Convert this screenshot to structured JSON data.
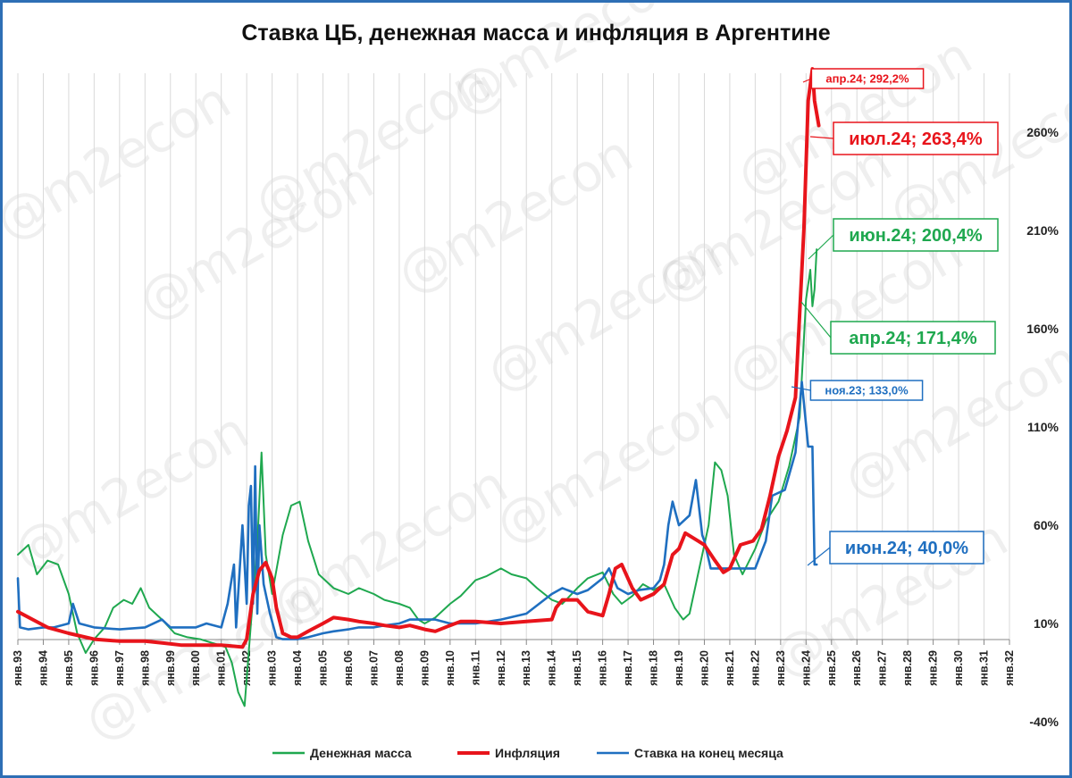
{
  "watermark": "@m2econ",
  "chart_data": {
    "type": "line",
    "title": "Ставка ЦБ, денежная масса и инфляция в Аргентине",
    "x_start": "1993-01",
    "x_end": "2032-01",
    "xticks": [
      "янв.93",
      "янв.94",
      "янв.95",
      "янв.96",
      "янв.97",
      "янв.98",
      "янв.99",
      "янв.00",
      "янв.01",
      "янв.02",
      "янв.03",
      "янв.04",
      "янв.05",
      "янв.06",
      "янв.07",
      "янв.08",
      "янв.09",
      "янв.10",
      "янв.11",
      "янв.12",
      "янв.13",
      "янв.14",
      "янв.15",
      "янв.16",
      "янв.17",
      "янв.18",
      "янв.19",
      "янв.20",
      "янв.21",
      "янв.22",
      "янв.23",
      "янв.24",
      "янв.25",
      "янв.26",
      "янв.27",
      "янв.28",
      "янв.29",
      "янв.30",
      "янв.31",
      "янв.32"
    ],
    "ylim": [
      -40,
      290
    ],
    "yticks": [
      -40,
      10,
      60,
      110,
      160,
      210,
      260
    ],
    "ytick_labels": [
      "-40%",
      "10%",
      "60%",
      "110%",
      "160%",
      "210%",
      "260%"
    ],
    "grid": "vertical",
    "legend_position": "bottom",
    "series": [
      {
        "name": "Денежная масса",
        "color": "#1fa84f",
        "points": [
          [
            "1993-01",
            45
          ],
          [
            "1993-06",
            50
          ],
          [
            "1993-10",
            35
          ],
          [
            "1994-03",
            42
          ],
          [
            "1994-08",
            40
          ],
          [
            "1995-01",
            25
          ],
          [
            "1995-05",
            5
          ],
          [
            "1995-09",
            -5
          ],
          [
            "1996-01",
            2
          ],
          [
            "1996-06",
            8
          ],
          [
            "1996-10",
            18
          ],
          [
            "1997-03",
            22
          ],
          [
            "1997-07",
            20
          ],
          [
            "1997-11",
            28
          ],
          [
            "1998-03",
            18
          ],
          [
            "1998-09",
            12
          ],
          [
            "1999-03",
            5
          ],
          [
            "1999-09",
            3
          ],
          [
            "2000-03",
            2
          ],
          [
            "2000-09",
            0
          ],
          [
            "2001-03",
            -2
          ],
          [
            "2001-06",
            -10
          ],
          [
            "2001-09",
            -25
          ],
          [
            "2001-12",
            -32
          ],
          [
            "2002-03",
            10
          ],
          [
            "2002-06",
            50
          ],
          [
            "2002-08",
            97
          ],
          [
            "2002-10",
            45
          ],
          [
            "2003-01",
            25
          ],
          [
            "2003-06",
            55
          ],
          [
            "2003-10",
            70
          ],
          [
            "2004-02",
            72
          ],
          [
            "2004-06",
            52
          ],
          [
            "2004-11",
            35
          ],
          [
            "2005-06",
            28
          ],
          [
            "2006-01",
            25
          ],
          [
            "2006-06",
            28
          ],
          [
            "2007-01",
            25
          ],
          [
            "2007-06",
            22
          ],
          [
            "2008-01",
            20
          ],
          [
            "2008-06",
            18
          ],
          [
            "2008-10",
            12
          ],
          [
            "2009-01",
            10
          ],
          [
            "2009-06",
            13
          ],
          [
            "2010-01",
            20
          ],
          [
            "2010-06",
            24
          ],
          [
            "2011-01",
            32
          ],
          [
            "2011-06",
            34
          ],
          [
            "2012-01",
            38
          ],
          [
            "2012-06",
            35
          ],
          [
            "2013-01",
            33
          ],
          [
            "2013-06",
            28
          ],
          [
            "2014-01",
            22
          ],
          [
            "2014-06",
            20
          ],
          [
            "2015-01",
            28
          ],
          [
            "2015-06",
            33
          ],
          [
            "2016-01",
            36
          ],
          [
            "2016-06",
            25
          ],
          [
            "2016-10",
            20
          ],
          [
            "2017-03",
            24
          ],
          [
            "2017-08",
            30
          ],
          [
            "2018-01",
            27
          ],
          [
            "2018-06",
            30
          ],
          [
            "2018-11",
            18
          ],
          [
            "2019-03",
            12
          ],
          [
            "2019-06",
            15
          ],
          [
            "2019-10",
            35
          ],
          [
            "2020-03",
            60
          ],
          [
            "2020-06",
            92
          ],
          [
            "2020-09",
            88
          ],
          [
            "2020-12",
            75
          ],
          [
            "2021-03",
            45
          ],
          [
            "2021-07",
            35
          ],
          [
            "2022-01",
            48
          ],
          [
            "2022-06",
            62
          ],
          [
            "2022-12",
            72
          ],
          [
            "2023-05",
            90
          ],
          [
            "2023-10",
            115
          ],
          [
            "2024-01",
            175
          ],
          [
            "2024-03",
            190
          ],
          [
            "2024-04",
            171.4
          ],
          [
            "2024-05",
            180
          ],
          [
            "2024-06",
            200.4
          ]
        ]
      },
      {
        "name": "Инфляция",
        "color": "#e8141b",
        "points": [
          [
            "1993-01",
            16
          ],
          [
            "1993-08",
            12
          ],
          [
            "1994-03",
            8
          ],
          [
            "1995-01",
            5
          ],
          [
            "1996-01",
            2
          ],
          [
            "1997-01",
            1
          ],
          [
            "1998-01",
            1
          ],
          [
            "1998-10",
            0
          ],
          [
            "1999-06",
            -1
          ],
          [
            "2000-01",
            -1
          ],
          [
            "2000-06",
            -1
          ],
          [
            "2001-01",
            -1
          ],
          [
            "2001-11",
            -2
          ],
          [
            "2002-01",
            2
          ],
          [
            "2002-04",
            25
          ],
          [
            "2002-07",
            37
          ],
          [
            "2002-10",
            41
          ],
          [
            "2003-01",
            33
          ],
          [
            "2003-03",
            18
          ],
          [
            "2003-06",
            5
          ],
          [
            "2003-10",
            3
          ],
          [
            "2004-01",
            3
          ],
          [
            "2004-06",
            6
          ],
          [
            "2005-01",
            10
          ],
          [
            "2005-06",
            13
          ],
          [
            "2006-01",
            12
          ],
          [
            "2006-06",
            11
          ],
          [
            "2007-01",
            10
          ],
          [
            "2007-06",
            9
          ],
          [
            "2008-01",
            8
          ],
          [
            "2008-06",
            9
          ],
          [
            "2009-01",
            7
          ],
          [
            "2009-06",
            6
          ],
          [
            "2010-01",
            9
          ],
          [
            "2010-06",
            11
          ],
          [
            "2011-01",
            11
          ],
          [
            "2012-01",
            10
          ],
          [
            "2013-01",
            11
          ],
          [
            "2014-01",
            12
          ],
          [
            "2014-03",
            18
          ],
          [
            "2014-06",
            22
          ],
          [
            "2015-01",
            22
          ],
          [
            "2015-06",
            16
          ],
          [
            "2016-01",
            14
          ],
          [
            "2016-04",
            25
          ],
          [
            "2016-07",
            38
          ],
          [
            "2016-10",
            40
          ],
          [
            "2017-03",
            28
          ],
          [
            "2017-07",
            22
          ],
          [
            "2018-01",
            25
          ],
          [
            "2018-06",
            30
          ],
          [
            "2018-10",
            45
          ],
          [
            "2019-01",
            48
          ],
          [
            "2019-04",
            56
          ],
          [
            "2019-07",
            54
          ],
          [
            "2019-10",
            52
          ],
          [
            "2020-01",
            50
          ],
          [
            "2020-06",
            42
          ],
          [
            "2020-10",
            36
          ],
          [
            "2021-01",
            38
          ],
          [
            "2021-06",
            50
          ],
          [
            "2021-12",
            52
          ],
          [
            "2022-04",
            58
          ],
          [
            "2022-08",
            75
          ],
          [
            "2022-12",
            95
          ],
          [
            "2023-04",
            108
          ],
          [
            "2023-08",
            125
          ],
          [
            "2023-12",
            211
          ],
          [
            "2024-02",
            276
          ],
          [
            "2024-04",
            292.2
          ],
          [
            "2024-05",
            276
          ],
          [
            "2024-07",
            263.4
          ]
        ]
      },
      {
        "name": "Ставка на конец месяца",
        "color": "#1f6fc0",
        "points": [
          [
            "1993-01",
            33
          ],
          [
            "1993-02",
            8
          ],
          [
            "1993-06",
            7
          ],
          [
            "1994-01",
            8
          ],
          [
            "1994-06",
            8
          ],
          [
            "1995-01",
            10
          ],
          [
            "1995-03",
            20
          ],
          [
            "1995-06",
            10
          ],
          [
            "1996-01",
            8
          ],
          [
            "1997-01",
            7
          ],
          [
            "1998-01",
            8
          ],
          [
            "1998-09",
            12
          ],
          [
            "1999-01",
            8
          ],
          [
            "1999-06",
            8
          ],
          [
            "2000-01",
            8
          ],
          [
            "2000-06",
            10
          ],
          [
            "2001-01",
            8
          ],
          [
            "2001-04",
            20
          ],
          [
            "2001-07",
            40
          ],
          [
            "2001-08",
            8
          ],
          [
            "2001-11",
            60
          ],
          [
            "2002-01",
            20
          ],
          [
            "2002-02",
            70
          ],
          [
            "2002-03",
            80
          ],
          [
            "2002-04",
            20
          ],
          [
            "2002-05",
            90
          ],
          [
            "2002-06",
            15
          ],
          [
            "2002-07",
            60
          ],
          [
            "2002-09",
            30
          ],
          [
            "2002-12",
            15
          ],
          [
            "2003-03",
            3
          ],
          [
            "2003-06",
            2
          ],
          [
            "2004-01",
            2
          ],
          [
            "2004-06",
            3
          ],
          [
            "2005-01",
            5
          ],
          [
            "2005-06",
            6
          ],
          [
            "2006-01",
            7
          ],
          [
            "2006-06",
            8
          ],
          [
            "2007-01",
            8
          ],
          [
            "2007-06",
            9
          ],
          [
            "2008-01",
            10
          ],
          [
            "2008-06",
            12
          ],
          [
            "2009-01",
            12
          ],
          [
            "2009-06",
            12
          ],
          [
            "2010-01",
            10
          ],
          [
            "2011-01",
            10
          ],
          [
            "2012-01",
            12
          ],
          [
            "2013-01",
            15
          ],
          [
            "2014-01",
            25
          ],
          [
            "2014-06",
            28
          ],
          [
            "2015-01",
            25
          ],
          [
            "2015-06",
            27
          ],
          [
            "2016-01",
            33
          ],
          [
            "2016-04",
            38
          ],
          [
            "2016-08",
            28
          ],
          [
            "2017-01",
            25
          ],
          [
            "2017-06",
            27
          ],
          [
            "2018-01",
            28
          ],
          [
            "2018-04",
            32
          ],
          [
            "2018-06",
            40
          ],
          [
            "2018-08",
            60
          ],
          [
            "2018-10",
            72
          ],
          [
            "2019-01",
            60
          ],
          [
            "2019-06",
            65
          ],
          [
            "2019-09",
            83
          ],
          [
            "2019-12",
            55
          ],
          [
            "2020-01",
            52
          ],
          [
            "2020-04",
            38
          ],
          [
            "2021-01",
            38
          ],
          [
            "2022-01",
            38
          ],
          [
            "2022-06",
            52
          ],
          [
            "2022-09",
            75
          ],
          [
            "2023-03",
            78
          ],
          [
            "2023-08",
            97
          ],
          [
            "2023-11",
            133
          ],
          [
            "2024-02",
            100
          ],
          [
            "2024-04",
            100
          ],
          [
            "2024-05",
            40
          ],
          [
            "2024-06",
            40
          ]
        ]
      }
    ],
    "annotations": [
      {
        "series": "Инфляция",
        "label": "апр.24; 292,2%",
        "size": "small"
      },
      {
        "series": "Инфляция",
        "label": "июл.24; 263,4%",
        "size": "large"
      },
      {
        "series": "Денежная масса",
        "label": "июн.24; 200,4%",
        "size": "large"
      },
      {
        "series": "Денежная масса",
        "label": "апр.24; 171,4%",
        "size": "large"
      },
      {
        "series": "Ставка на конец месяца",
        "label": "ноя.23; 133,0%",
        "size": "small"
      },
      {
        "series": "Ставка на конец месяца",
        "label": "июн.24; 40,0%",
        "size": "large"
      }
    ]
  }
}
